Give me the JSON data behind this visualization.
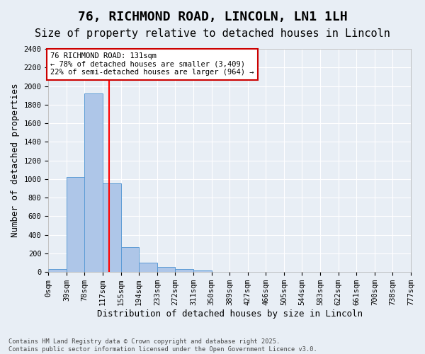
{
  "title1": "76, RICHMOND ROAD, LINCOLN, LN1 1LH",
  "title2": "Size of property relative to detached houses in Lincoln",
  "xlabel": "Distribution of detached houses by size in Lincoln",
  "ylabel": "Number of detached properties",
  "bar_values": [
    30,
    1020,
    1920,
    950,
    270,
    100,
    55,
    30,
    15,
    5,
    0,
    0,
    0,
    0,
    0,
    0,
    0,
    0,
    0,
    0
  ],
  "bar_color": "#aec6e8",
  "bar_edge_color": "#5b9bd5",
  "categories": [
    "0sqm",
    "39sqm",
    "78sqm",
    "117sqm",
    "155sqm",
    "194sqm",
    "233sqm",
    "272sqm",
    "311sqm",
    "350sqm",
    "389sqm",
    "427sqm",
    "466sqm",
    "505sqm",
    "544sqm",
    "583sqm",
    "622sqm",
    "661sqm",
    "700sqm",
    "738sqm",
    "777sqm"
  ],
  "ylim": [
    0,
    2400
  ],
  "yticks": [
    0,
    200,
    400,
    600,
    800,
    1000,
    1200,
    1400,
    1600,
    1800,
    2000,
    2200,
    2400
  ],
  "red_line_x": 3.36,
  "annotation_text": "76 RICHMOND ROAD: 131sqm\n← 78% of detached houses are smaller (3,409)\n22% of semi-detached houses are larger (964) →",
  "annotation_box_facecolor": "#ffffff",
  "annotation_box_edgecolor": "#cc0000",
  "bg_color": "#e8eef5",
  "grid_color": "#ffffff",
  "footnote": "Contains HM Land Registry data © Crown copyright and database right 2025.\nContains public sector information licensed under the Open Government Licence v3.0.",
  "title_fontsize": 13,
  "subtitle_fontsize": 11,
  "axis_label_fontsize": 9,
  "tick_fontsize": 7.5,
  "annot_fontsize": 7.5
}
